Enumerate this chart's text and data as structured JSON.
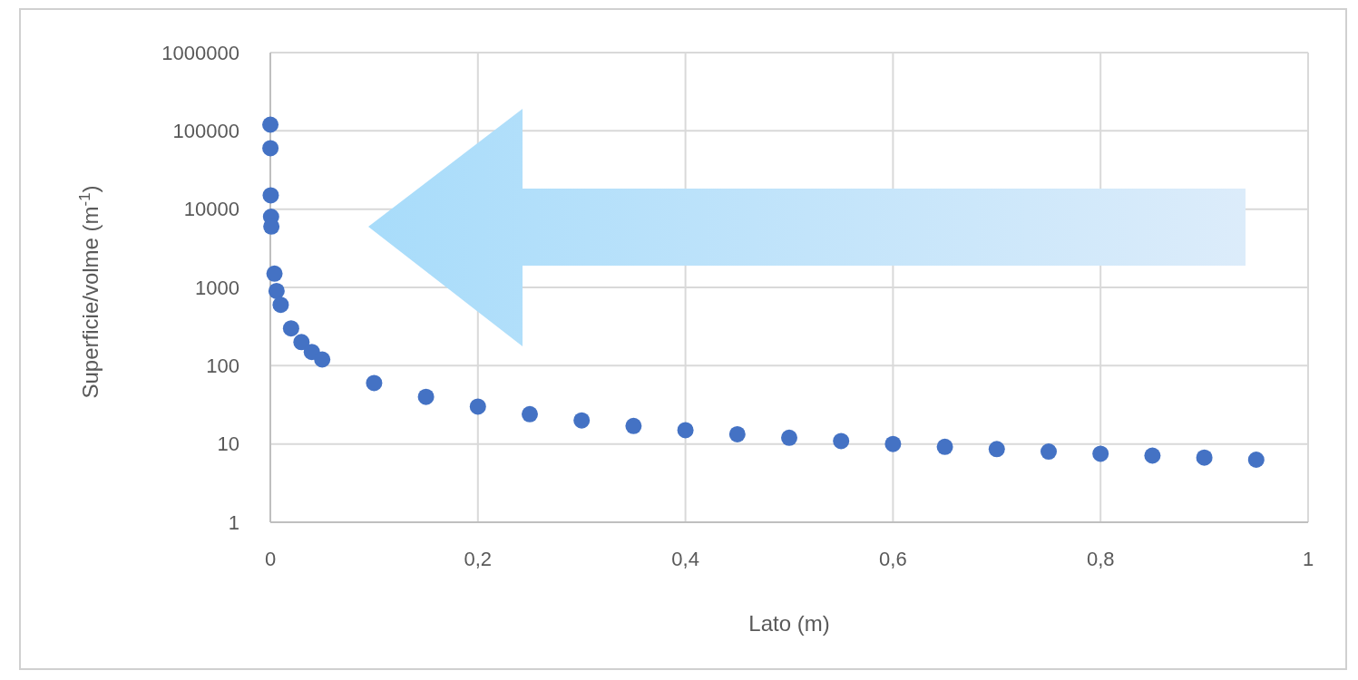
{
  "chart_data": {
    "type": "scatter",
    "xlabel": "Lato (m)",
    "ylabel": "Superficie/volme (m$^{-1}$)",
    "x": [
      5e-05,
      0.0001,
      0.0004,
      0.0007,
      0.001,
      0.004,
      0.006,
      0.01,
      0.02,
      0.03,
      0.04,
      0.05,
      0.1,
      0.15,
      0.2,
      0.25,
      0.3,
      0.35,
      0.4,
      0.45,
      0.5,
      0.55,
      0.6,
      0.65,
      0.7,
      0.75,
      0.8,
      0.85,
      0.9,
      0.95
    ],
    "series": [
      {
        "color": "#4472c4",
        "values": [
          120000,
          60000,
          15000,
          8000,
          6000,
          1500,
          900,
          600,
          300,
          200,
          150,
          120,
          60,
          40,
          30,
          24,
          20,
          17,
          15,
          13.3,
          12,
          10.9,
          10,
          9.2,
          8.6,
          8,
          7.5,
          7.1,
          6.7,
          6.3
        ]
      }
    ],
    "xlim": [
      0,
      1
    ],
    "xticks": [
      0,
      {
        "value": 0.2,
        "label": "0,2"
      },
      {
        "value": 0.4,
        "label": "0,4"
      },
      {
        "value": 0.6,
        "label": "0,6"
      },
      {
        "value": 0.8,
        "label": "0,8"
      },
      1
    ],
    "ylim": [
      1,
      1000000
    ],
    "yticks": [
      1,
      10,
      100,
      1000,
      10000,
      100000,
      1000000
    ],
    "log": "y",
    "grid": true,
    "marker": "circle"
  }
}
